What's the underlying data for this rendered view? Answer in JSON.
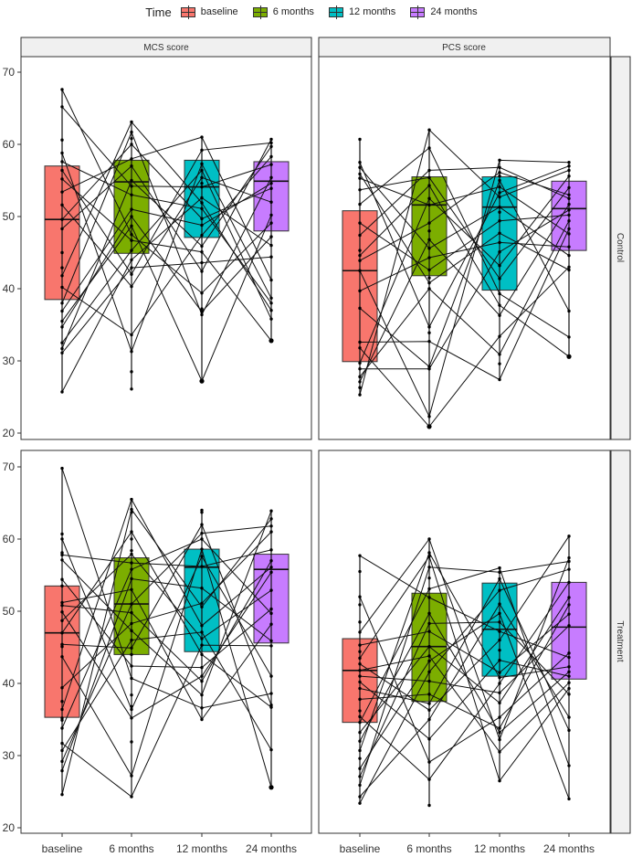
{
  "chart_data": {
    "type": "boxplot",
    "title": "",
    "legend": {
      "title": "Time",
      "position": "top",
      "entries": [
        {
          "label": "baseline",
          "color": "#F8766D"
        },
        {
          "label": "6 months",
          "color": "#7CAE00"
        },
        {
          "label": "12  months",
          "color": "#00BFC4"
        },
        {
          "label": "24 months",
          "color": "#C77CFF"
        }
      ]
    },
    "categories": [
      "baseline",
      "6 months",
      "12  months",
      "24 months"
    ],
    "facet_columns": [
      "MCS score",
      "PCS score"
    ],
    "facet_rows": [
      "Control",
      "Treatment"
    ],
    "xlabel": "",
    "ylabel": "",
    "ylim": [
      19,
      72
    ],
    "yticks": [
      20,
      30,
      40,
      50,
      60,
      70
    ],
    "grid": false,
    "panels": [
      {
        "column": "MCS score",
        "row": "Control",
        "boxes": [
          {
            "category": "baseline",
            "q1": 38.5,
            "median": 49.6,
            "q3": 57.0,
            "min": 25.7,
            "max": 67.6,
            "outliers": []
          },
          {
            "category": "6 months",
            "q1": 44.9,
            "median": 54.8,
            "q3": 57.8,
            "min": 26.1,
            "max": 63.1,
            "outliers": []
          },
          {
            "category": "12  months",
            "q1": 47.1,
            "median": 54.1,
            "q3": 57.8,
            "min": 36.4,
            "max": 61.0,
            "outliers": [
              27.2
            ]
          },
          {
            "category": "24 months",
            "q1": 48.0,
            "median": 54.9,
            "q3": 57.6,
            "min": 35.8,
            "max": 60.7,
            "outliers": [
              32.8
            ]
          }
        ],
        "points": [
          [
            67.6,
            65.2,
            60.6,
            58.8,
            57.6,
            56.4,
            55.2,
            53.4,
            51.6,
            49.6,
            48.3,
            45.0,
            42.9,
            41.8,
            40.2,
            38.0,
            36.9,
            35.5,
            34.7,
            32.5,
            31.7,
            31.1,
            25.7
          ],
          [
            63.1,
            61.7,
            60.8,
            60.0,
            58.0,
            57.0,
            55.0,
            54.2,
            53.0,
            51.0,
            50.0,
            48.7,
            47.5,
            46.7,
            45.3,
            44.0,
            42.9,
            42.0,
            40.3,
            33.6,
            31.3,
            28.5,
            26.1
          ],
          [
            61.0,
            59.2,
            57.3,
            56.4,
            55.4,
            54.6,
            54.1,
            52.6,
            51.9,
            51.1,
            49.7,
            48.8,
            47.4,
            45.9,
            45.1,
            43.6,
            42.4,
            39.4,
            37.2,
            36.8,
            36.4,
            27.2
          ],
          [
            60.7,
            60.2,
            59.7,
            58.3,
            57.2,
            55.4,
            54.6,
            53.9,
            52.0,
            50.2,
            49.1,
            47.2,
            46.0,
            44.4,
            41.2,
            38.7,
            38.0,
            37.0,
            35.8,
            32.8
          ]
        ]
      },
      {
        "column": "PCS score",
        "row": "Control",
        "boxes": [
          {
            "category": "baseline",
            "q1": 29.9,
            "median": 42.5,
            "q3": 50.8,
            "min": 25.3,
            "max": 60.7,
            "outliers": []
          },
          {
            "category": "6 months",
            "q1": 41.8,
            "median": 51.6,
            "q3": 55.5,
            "min": 22.3,
            "max": 62.0,
            "outliers": [
              20.9
            ]
          },
          {
            "category": "12  months",
            "q1": 39.8,
            "median": 51.3,
            "q3": 55.5,
            "min": 27.4,
            "max": 57.8,
            "outliers": []
          },
          {
            "category": "24 months",
            "q1": 45.3,
            "median": 51.1,
            "q3": 54.9,
            "min": 33.3,
            "max": 57.5,
            "outliers": [
              30.6
            ]
          }
        ],
        "points": [
          [
            60.7,
            57.5,
            56.8,
            55.9,
            55.3,
            53.7,
            51.7,
            49.1,
            47.4,
            45.3,
            44.6,
            43.9,
            42.5,
            39.7,
            37.3,
            32.6,
            31.8,
            29.7,
            28.9,
            27.8,
            27.1,
            26.3,
            25.3
          ],
          [
            62.0,
            59.5,
            56.4,
            55.4,
            54.3,
            52.5,
            51.6,
            49.1,
            48.0,
            46.8,
            45.6,
            44.3,
            42.6,
            41.5,
            40.8,
            40.0,
            34.7,
            33.9,
            32.7,
            29.2,
            28.9,
            22.3,
            20.9
          ],
          [
            57.8,
            56.8,
            56.1,
            55.6,
            55.0,
            54.1,
            53.3,
            52.7,
            51.3,
            50.6,
            49.4,
            47.7,
            46.4,
            45.1,
            43.2,
            41.4,
            39.3,
            37.7,
            36.3,
            33.4,
            30.9,
            29.6,
            27.4
          ],
          [
            57.5,
            57.0,
            56.4,
            55.6,
            54.0,
            53.0,
            52.5,
            51.7,
            50.9,
            50.2,
            49.4,
            48.3,
            47.6,
            45.8,
            44.6,
            43.0,
            42.6,
            36.9,
            33.3,
            30.6
          ]
        ]
      },
      {
        "column": "MCS score",
        "row": "Treatment",
        "boxes": [
          {
            "category": "baseline",
            "q1": 35.3,
            "median": 47.0,
            "q3": 53.5,
            "min": 24.6,
            "max": 69.8,
            "outliers": []
          },
          {
            "category": "6 months",
            "q1": 44.0,
            "median": 51.0,
            "q3": 57.4,
            "min": 24.3,
            "max": 65.5,
            "outliers": []
          },
          {
            "category": "12  months",
            "q1": 44.4,
            "median": 56.1,
            "q3": 58.6,
            "min": 35.0,
            "max": 64.0,
            "outliers": []
          },
          {
            "category": "24 months",
            "q1": 45.6,
            "median": 55.8,
            "q3": 57.9,
            "min": 30.8,
            "max": 63.9,
            "outliers": [
              25.6
            ]
          }
        ],
        "points": [
          [
            69.8,
            60.7,
            60.0,
            58.1,
            57.8,
            57.1,
            54.4,
            53.5,
            51.2,
            50.8,
            49.9,
            48.7,
            47.0,
            45.4,
            45.1,
            43.7,
            39.4,
            37.5,
            36.4,
            35.2,
            34.9,
            33.8,
            31.7,
            30.7,
            29.2,
            27.9,
            24.6
          ],
          [
            65.5,
            64.1,
            63.7,
            61.0,
            60.0,
            58.4,
            57.9,
            56.7,
            55.8,
            54.5,
            53.0,
            51.0,
            49.8,
            48.3,
            47.3,
            46.0,
            44.9,
            44.0,
            42.4,
            40.7,
            38.4,
            36.8,
            36.4,
            35.2,
            31.9,
            27.2,
            24.3
          ],
          [
            64.0,
            63.7,
            62.0,
            60.8,
            60.0,
            58.6,
            57.6,
            56.2,
            53.2,
            51.1,
            50.6,
            48.0,
            47.1,
            46.2,
            45.3,
            44.0,
            42.2,
            41.0,
            40.3,
            38.4,
            36.6,
            35.0
          ],
          [
            63.9,
            62.8,
            61.8,
            61.0,
            58.5,
            57.0,
            56.1,
            55.4,
            52.9,
            50.3,
            49.7,
            48.2,
            45.9,
            45.2,
            41.0,
            38.6,
            37.0,
            36.7,
            30.8,
            25.6
          ]
        ]
      },
      {
        "column": "PCS score",
        "row": "Treatment",
        "boxes": [
          {
            "category": "baseline",
            "q1": 34.6,
            "median": 41.8,
            "q3": 46.2,
            "min": 23.4,
            "max": 57.7,
            "outliers": []
          },
          {
            "category": "6 months",
            "q1": 37.5,
            "median": 45.1,
            "q3": 52.5,
            "min": 23.1,
            "max": 60.0,
            "outliers": []
          },
          {
            "category": "12  months",
            "q1": 41.0,
            "median": 47.5,
            "q3": 53.9,
            "min": 26.5,
            "max": 56.0,
            "outliers": []
          },
          {
            "category": "24 months",
            "q1": 40.6,
            "median": 47.8,
            "q3": 54.0,
            "min": 24.0,
            "max": 60.4,
            "outliers": []
          }
        ],
        "points": [
          [
            57.7,
            55.5,
            52.0,
            50.9,
            48.5,
            47.1,
            45.3,
            44.4,
            43.5,
            42.7,
            41.8,
            41.0,
            40.2,
            39.3,
            37.8,
            36.2,
            35.4,
            34.6,
            33.2,
            32.0,
            30.7,
            29.6,
            28.2,
            27.1,
            25.9,
            24.3,
            23.4
          ],
          [
            60.0,
            58.1,
            57.6,
            56.1,
            54.6,
            53.1,
            51.9,
            49.7,
            48.3,
            47.2,
            45.1,
            43.8,
            43.1,
            41.6,
            40.3,
            38.5,
            37.2,
            36.3,
            35.0,
            32.3,
            29.1,
            26.7,
            23.1
          ],
          [
            56.0,
            55.4,
            54.5,
            52.9,
            51.0,
            49.7,
            48.5,
            47.2,
            46.0,
            44.6,
            43.2,
            41.5,
            40.8,
            40.0,
            38.7,
            37.3,
            35.3,
            33.8,
            33.2,
            32.2,
            30.5,
            26.5
          ],
          [
            60.4,
            57.4,
            56.9,
            55.8,
            54.0,
            51.9,
            50.9,
            49.6,
            48.0,
            44.2,
            43.6,
            42.3,
            41.6,
            41.0,
            40.1,
            39.3,
            38.5,
            35.3,
            33.5,
            28.6,
            24.0
          ]
        ]
      }
    ],
    "subject_lines_note": "thin black lines connect each subject's score across time points"
  },
  "legend": {
    "title": "Time",
    "items": [
      "baseline",
      "6 months",
      "12  months",
      "24 months"
    ]
  },
  "strips": {
    "col1": "MCS score",
    "col2": "PCS score",
    "row1": "Control",
    "row2": "Treatment"
  },
  "axes": {
    "yticks": [
      "20",
      "30",
      "40",
      "50",
      "60",
      "70"
    ],
    "xticks": [
      "baseline",
      "6 months",
      "12  months",
      "24 months"
    ]
  },
  "colors": {
    "baseline": "#F8766D",
    "m6": "#7CAE00",
    "m12": "#00BFC4",
    "m24": "#C77CFF",
    "strip_bg": "#F0F0F0",
    "panel_border": "#333333"
  }
}
